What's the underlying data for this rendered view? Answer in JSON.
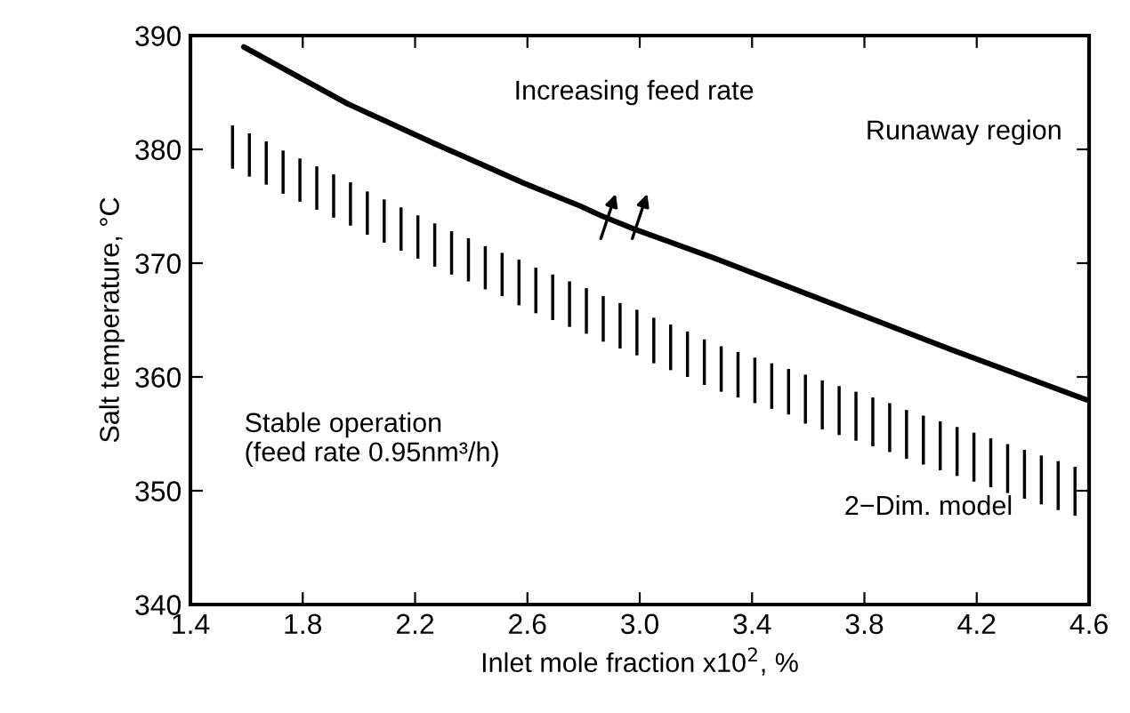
{
  "chart_data": {
    "type": "line",
    "xlabel": "Inlet mole fraction x10$^{2}$, %",
    "ylabel": "Salt temperature, °C",
    "xlim": [
      1.4,
      4.6
    ],
    "xticks": [
      1.4,
      1.8,
      2.2,
      2.6,
      {
        "value": 3.0,
        "label": "3.0"
      },
      3.4,
      3.8,
      4.2,
      4.6
    ],
    "ylim": [
      340,
      390
    ],
    "yticks": [
      340,
      350,
      360,
      370,
      380,
      390
    ],
    "grid": false,
    "legend": "bottom right",
    "marker": "none",
    "line_style": "solid",
    "series": [
      {
        "color": "#000000",
        "x": [
          1.59,
          1.96,
          2.27,
          2.59,
          2.79,
          2.86,
          2.98,
          3.27,
          3.69,
          4.11,
          4.59
        ],
        "values": [
          389.0,
          384.0,
          380.5,
          377.0,
          375.0,
          374.2,
          373.0,
          370.4,
          366.4,
          362.4,
          358.0
        ]
      },
      {
        "type": "bar",
        "name": "2−Dim. model",
        "color": "#000000",
        "x": [
          1.55,
          1.61,
          1.67,
          1.73,
          1.79,
          1.85,
          1.91,
          1.97,
          2.03,
          2.09,
          2.15,
          2.21,
          2.27,
          2.33,
          2.39,
          2.45,
          2.51,
          2.57,
          2.63,
          2.69,
          2.75,
          2.81,
          2.87,
          2.93,
          2.99,
          3.05,
          3.11,
          3.17,
          3.23,
          3.29,
          3.35,
          3.41,
          3.47,
          3.53,
          3.59,
          3.65,
          3.71,
          3.77,
          3.83,
          3.89,
          3.95,
          4.01,
          4.07,
          4.13,
          4.19,
          4.25,
          4.31,
          4.37,
          4.43,
          4.49,
          4.55
        ],
        "base": [
          378.3,
          377.6,
          376.9,
          376.1,
          375.4,
          374.7,
          374.0,
          373.3,
          372.5,
          371.8,
          371.1,
          370.4,
          369.7,
          369.0,
          368.4,
          367.7,
          367.1,
          366.3,
          365.6,
          365.0,
          364.4,
          363.8,
          363.1,
          362.5,
          361.9,
          361.2,
          360.6,
          360.0,
          359.3,
          358.7,
          358.2,
          357.7,
          357.2,
          356.7,
          355.9,
          355.4,
          354.9,
          354.4,
          353.9,
          353.4,
          352.8,
          352.3,
          351.8,
          351.3,
          350.8,
          350.3,
          349.8,
          349.3,
          348.8,
          348.3,
          347.8
        ],
        "values": [
          3.8,
          3.8,
          3.8,
          3.8,
          3.8,
          3.8,
          3.8,
          3.8,
          3.8,
          3.8,
          3.8,
          3.8,
          3.8,
          3.8,
          3.8,
          3.8,
          3.8,
          4.0,
          4.0,
          4.0,
          4.0,
          4.0,
          4.0,
          4.0,
          4.0,
          4.0,
          4.0,
          4.0,
          4.0,
          4.0,
          4.0,
          4.0,
          4.0,
          4.0,
          4.3,
          4.3,
          4.3,
          4.3,
          4.3,
          4.3,
          4.3,
          4.3,
          4.3,
          4.3,
          4.3,
          4.3,
          4.3,
          4.3,
          4.3,
          4.3,
          4.3
        ]
      }
    ],
    "annotations": [
      "Increasing feed rate",
      "Runaway region",
      "Stable operation\n(feed rate 0.95nm³/h)"
    ]
  }
}
